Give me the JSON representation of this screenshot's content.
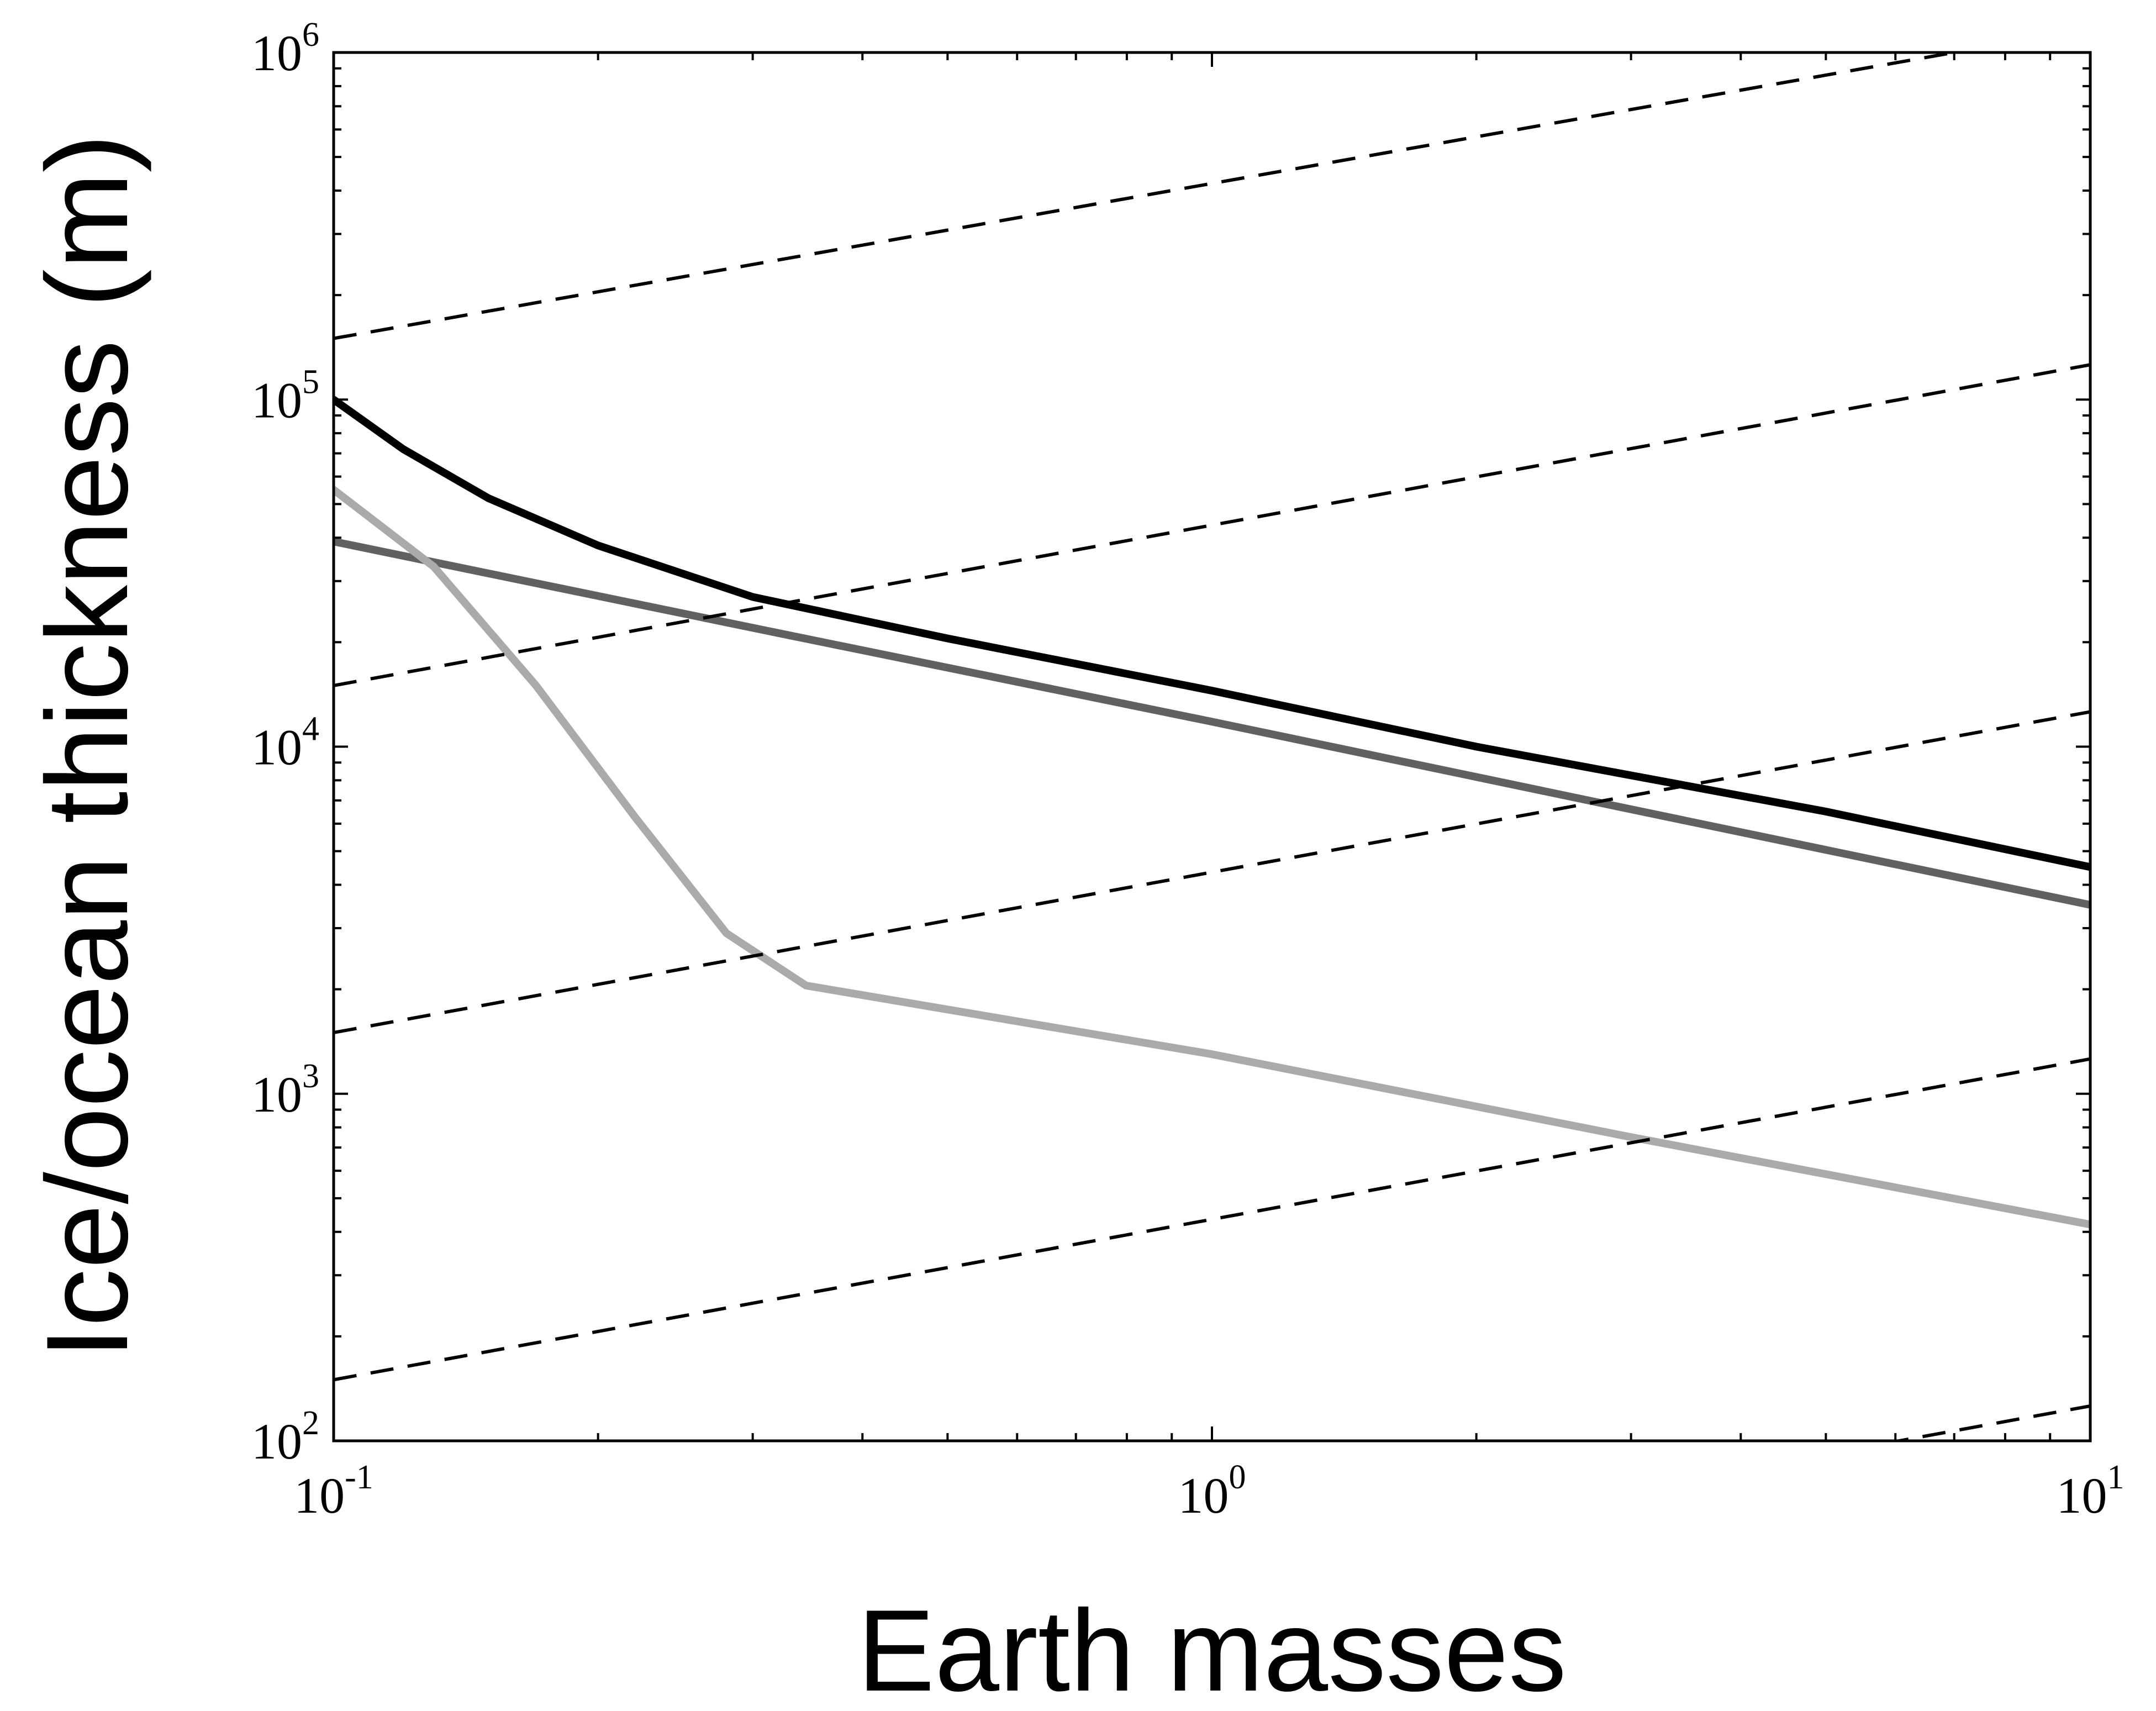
{
  "chart_data": {
    "type": "line",
    "title": "",
    "xlabel": "Earth masses",
    "ylabel": "Ice/ocean thickness (m)",
    "xscale": "log",
    "yscale": "log",
    "xlim": [
      0.1,
      10
    ],
    "ylim": [
      100,
      1000000
    ],
    "grid": false,
    "legend": "none",
    "xticks": [
      {
        "value": 0.1,
        "base": "10",
        "exp": "-1"
      },
      {
        "value": 1,
        "base": "10",
        "exp": "0"
      },
      {
        "value": 10,
        "base": "10",
        "exp": "1"
      }
    ],
    "yticks": [
      {
        "value": 100,
        "base": "10",
        "exp": "2"
      },
      {
        "value": 1000,
        "base": "10",
        "exp": "3"
      },
      {
        "value": 10000,
        "base": "10",
        "exp": "4"
      },
      {
        "value": 100000,
        "base": "10",
        "exp": "5"
      },
      {
        "value": 1000000,
        "base": "10",
        "exp": "6"
      }
    ],
    "series": [
      {
        "color": "#000000",
        "style": "solid",
        "x": [
          0.1,
          0.12,
          0.15,
          0.2,
          0.3,
          0.5,
          1,
          2,
          5,
          10
        ],
        "y": [
          100000,
          72000,
          52000,
          38000,
          27000,
          20500,
          14500,
          10000,
          6500,
          4500
        ]
      },
      {
        "color": "#616161",
        "style": "solid",
        "x": [
          0.1,
          0.3,
          1,
          3,
          10
        ],
        "y": [
          39000,
          22000,
          11800,
          6600,
          3500
        ]
      },
      {
        "color": "#aaaaaa",
        "style": "solid",
        "x": [
          0.1,
          0.13,
          0.17,
          0.22,
          0.28,
          0.345,
          1,
          3,
          10
        ],
        "y": [
          55000,
          33000,
          15000,
          6300,
          2900,
          2050,
          1300,
          750,
          420
        ]
      },
      {
        "color": "#000000",
        "style": "dashed",
        "x": [
          0.1,
          7
        ],
        "y": [
          150000,
          1000000
        ]
      },
      {
        "color": "#000000",
        "style": "dashed",
        "x": [
          0.1,
          10
        ],
        "y": [
          15000,
          126000
        ]
      },
      {
        "color": "#000000",
        "style": "dashed",
        "x": [
          0.1,
          10
        ],
        "y": [
          1500,
          12600
        ]
      },
      {
        "color": "#000000",
        "style": "dashed",
        "x": [
          0.1,
          10
        ],
        "y": [
          150,
          1260
        ]
      },
      {
        "color": "#000000",
        "style": "dashed",
        "x": [
          0.1,
          10
        ],
        "y": [
          15,
          126
        ]
      }
    ]
  }
}
